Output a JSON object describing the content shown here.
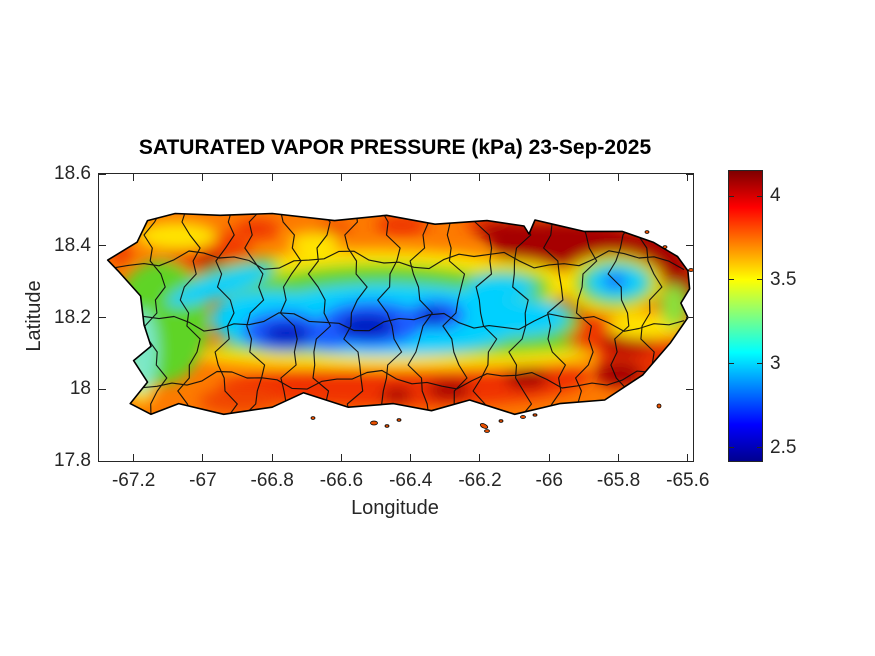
{
  "window": {
    "background": "#ffffff"
  },
  "chart_data": {
    "type": "heatmap",
    "variant": "filled-contour-map",
    "title": "SATURATED VAPOR PRESSURE (kPa) 23-Sep-2025",
    "date_shown": "23-Sep-2025",
    "xlabel": "Longitude",
    "ylabel": "Latitude",
    "xlim": [
      -67.3,
      -65.585
    ],
    "ylim": [
      17.8,
      18.6
    ],
    "x_ticks": [
      -67.2,
      -67,
      -66.8,
      -66.6,
      -66.4,
      -66.2,
      -66,
      -65.8,
      -65.6
    ],
    "x_tick_labels": [
      "-67.2",
      "-67",
      "-66.8",
      "-66.6",
      "-66.4",
      "-66.2",
      "-66",
      "-65.8",
      "-65.6"
    ],
    "y_ticks": [
      18.6,
      18.4,
      18.2,
      18,
      17.8
    ],
    "y_tick_labels": [
      "18.6",
      "18.4",
      "18.2",
      "18",
      "17.8"
    ],
    "grid": false,
    "legend": "none",
    "region": "Puerto Rico with municipality boundaries",
    "units": "kPa",
    "axis_color": "#262626",
    "boundary_color": "#000000",
    "colorbar": {
      "position": "right",
      "min": 2.42,
      "max": 4.15,
      "ticks": [
        2.5,
        3,
        3.5,
        4
      ],
      "tick_labels": [
        "2.5",
        "3",
        "3.5",
        "4"
      ],
      "colormap": "jet",
      "stops": [
        "#00008f",
        "#0000ff",
        "#00ffff",
        "#ffff00",
        "#ff0000",
        "#7f0000"
      ]
    },
    "samples": [
      {
        "lon": -66.85,
        "lat": 18.17,
        "value": 2.5
      },
      {
        "lon": -66.55,
        "lat": 18.2,
        "value": 2.5
      },
      {
        "lon": -66.45,
        "lat": 18.2,
        "value": 2.6
      },
      {
        "lon": -65.8,
        "lat": 18.3,
        "value": 2.9
      },
      {
        "lon": -66.0,
        "lat": 18.38,
        "value": 4.1
      },
      {
        "lon": -65.65,
        "lat": 18.3,
        "value": 4.0
      },
      {
        "lon": -66.5,
        "lat": 18.03,
        "value": 3.95
      },
      {
        "lon": -66.15,
        "lat": 17.97,
        "value": 4.0
      },
      {
        "lon": -67.1,
        "lat": 18.33,
        "value": 3.9
      },
      {
        "lon": -66.6,
        "lat": 18.45,
        "value": 3.7
      },
      {
        "lon": -67.15,
        "lat": 18.15,
        "value": 3.3
      },
      {
        "lon": -66.3,
        "lat": 18.45,
        "value": 3.6
      },
      {
        "lon": -66.7,
        "lat": 18.3,
        "value": 3.2
      },
      {
        "lon": -66.2,
        "lat": 18.25,
        "value": 3.0
      }
    ]
  }
}
